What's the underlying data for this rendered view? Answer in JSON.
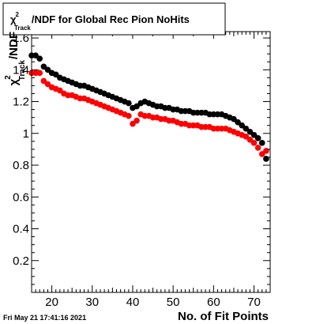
{
  "chart_data": {
    "type": "scatter",
    "title_parts": {
      "symbol": "χ",
      "sup": "2",
      "sub": "Track",
      "rest": "/NDF for Global Rec Pion NoHits"
    },
    "xlabel": "No. of Fit Points",
    "ylabel_parts": {
      "symbol": "χ",
      "sup": "2",
      "sub": "Track",
      "rest": "/NDF"
    },
    "xlim": [
      15,
      74
    ],
    "ylim": [
      0,
      1.64
    ],
    "x_ticks": [
      20,
      30,
      40,
      50,
      60,
      70
    ],
    "y_ticks": [
      0.2,
      0.4,
      0.6,
      0.8,
      1.0,
      1.2,
      1.4,
      1.6
    ],
    "x_tick_labels": [
      "20",
      "30",
      "40",
      "50",
      "60",
      "70"
    ],
    "y_tick_labels": [
      "0.2",
      "0.4",
      "0.6",
      "0.8",
      "1",
      "1.2",
      "1.4",
      "1.6"
    ],
    "grid": false,
    "series": [
      {
        "color": "#000000",
        "x": [
          15,
          16,
          17,
          18,
          19,
          20,
          21,
          22,
          23,
          24,
          25,
          26,
          27,
          28,
          29,
          30,
          31,
          32,
          33,
          34,
          35,
          36,
          37,
          38,
          39,
          40,
          41,
          42,
          43,
          44,
          45,
          46,
          47,
          48,
          49,
          50,
          51,
          52,
          53,
          54,
          55,
          56,
          57,
          58,
          59,
          60,
          61,
          62,
          63,
          64,
          65,
          66,
          67,
          68,
          69,
          70,
          71,
          72,
          73
        ],
        "values": [
          1.49,
          1.49,
          1.47,
          1.42,
          1.4,
          1.38,
          1.37,
          1.35,
          1.34,
          1.33,
          1.32,
          1.31,
          1.3,
          1.3,
          1.29,
          1.28,
          1.27,
          1.26,
          1.25,
          1.24,
          1.23,
          1.22,
          1.21,
          1.2,
          1.19,
          1.16,
          1.17,
          1.19,
          1.2,
          1.19,
          1.18,
          1.17,
          1.17,
          1.16,
          1.16,
          1.15,
          1.15,
          1.14,
          1.14,
          1.14,
          1.13,
          1.13,
          1.13,
          1.13,
          1.12,
          1.12,
          1.12,
          1.12,
          1.11,
          1.1,
          1.09,
          1.07,
          1.05,
          1.03,
          1.01,
          0.99,
          0.97,
          0.94,
          0.84
        ]
      },
      {
        "color": "#ff0000",
        "x": [
          15,
          16,
          17,
          18,
          19,
          20,
          21,
          22,
          23,
          24,
          25,
          26,
          27,
          28,
          29,
          30,
          31,
          32,
          33,
          34,
          35,
          36,
          37,
          38,
          39,
          40,
          41,
          42,
          43,
          44,
          45,
          46,
          47,
          48,
          49,
          50,
          51,
          52,
          53,
          54,
          55,
          56,
          57,
          58,
          59,
          60,
          61,
          62,
          63,
          64,
          65,
          66,
          67,
          68,
          69,
          70,
          71,
          72,
          73
        ],
        "values": [
          1.38,
          1.38,
          1.38,
          1.33,
          1.31,
          1.29,
          1.28,
          1.27,
          1.25,
          1.24,
          1.24,
          1.23,
          1.22,
          1.22,
          1.21,
          1.2,
          1.19,
          1.18,
          1.17,
          1.16,
          1.15,
          1.14,
          1.13,
          1.12,
          1.11,
          1.06,
          1.08,
          1.12,
          1.11,
          1.11,
          1.1,
          1.1,
          1.09,
          1.09,
          1.08,
          1.08,
          1.07,
          1.06,
          1.06,
          1.05,
          1.05,
          1.05,
          1.04,
          1.04,
          1.04,
          1.03,
          1.03,
          1.03,
          1.03,
          1.02,
          1.01,
          1.0,
          0.99,
          0.98,
          0.96,
          0.94,
          0.91,
          0.87,
          0.89
        ]
      }
    ]
  },
  "timestamp": "Fri May 21 17:41:16 2021"
}
